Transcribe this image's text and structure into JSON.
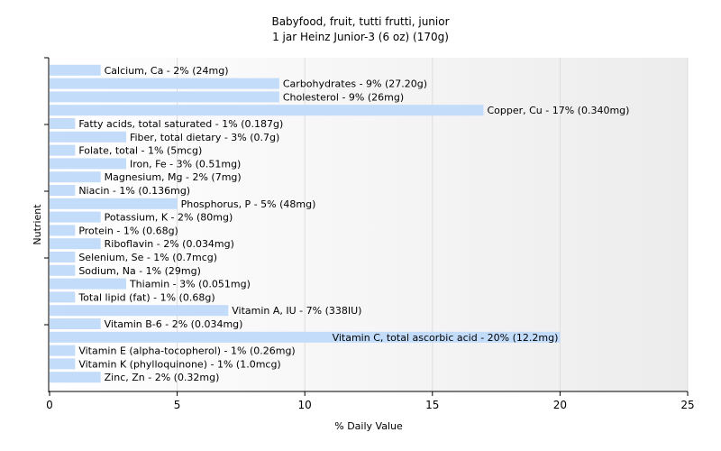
{
  "chart_data": {
    "type": "bar",
    "orientation": "horizontal",
    "title": "Babyfood, fruit, tutti frutti, junior",
    "subtitle": "1 jar Heinz Junior-3 (6 oz) (170g)",
    "xlabel": "% Daily Value",
    "ylabel": "Nutrient",
    "xlim": [
      0,
      25
    ],
    "xticks": [
      0,
      5,
      10,
      15,
      20,
      25
    ],
    "grid": true,
    "colors": {
      "bar": "#c2dcfa",
      "grid": "#dddddd",
      "axis": "#000000"
    },
    "categories": [
      "Calcium, Ca",
      "Carbohydrates",
      "Cholesterol",
      "Copper, Cu",
      "Fatty acids, total saturated",
      "Fiber, total dietary",
      "Folate, total",
      "Iron, Fe",
      "Magnesium, Mg",
      "Niacin",
      "Phosphorus, P",
      "Potassium, K",
      "Protein",
      "Riboflavin",
      "Selenium, Se",
      "Sodium, Na",
      "Thiamin",
      "Total lipid (fat)",
      "Vitamin A, IU",
      "Vitamin B-6",
      "Vitamin C, total ascorbic acid",
      "Vitamin E (alpha-tocopherol)",
      "Vitamin K (phylloquinone)",
      "Zinc, Zn"
    ],
    "values": [
      2,
      9,
      9,
      17,
      1,
      3,
      1,
      3,
      2,
      1,
      5,
      2,
      1,
      2,
      1,
      1,
      3,
      1,
      7,
      2,
      20,
      1,
      1,
      2
    ],
    "labels": [
      "Calcium, Ca - 2% (24mg)",
      "Carbohydrates - 9% (27.20g)",
      "Cholesterol - 9% (26mg)",
      "Copper, Cu - 17% (0.340mg)",
      "Fatty acids, total saturated - 1% (0.187g)",
      "Fiber, total dietary - 3% (0.7g)",
      "Folate, total - 1% (5mcg)",
      "Iron, Fe - 3% (0.51mg)",
      "Magnesium, Mg - 2% (7mg)",
      "Niacin - 1% (0.136mg)",
      "Phosphorus, P - 5% (48mg)",
      "Potassium, K - 2% (80mg)",
      "Protein - 1% (0.68g)",
      "Riboflavin - 2% (0.034mg)",
      "Selenium, Se - 1% (0.7mcg)",
      "Sodium, Na - 1% (29mg)",
      "Thiamin - 3% (0.051mg)",
      "Total lipid (fat) - 1% (0.68g)",
      "Vitamin A, IU - 7% (338IU)",
      "Vitamin B-6 - 2% (0.034mg)",
      "Vitamin C, total ascorbic acid - 20% (12.2mg)",
      "Vitamin E (alpha-tocopherol) - 1% (0.26mg)",
      "Vitamin K (phylloquinone) - 1% (1.0mcg)",
      "Zinc, Zn - 2% (0.32mg)"
    ]
  }
}
